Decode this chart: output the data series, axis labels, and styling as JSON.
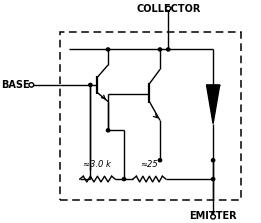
{
  "collector_label": "COLLECTOR",
  "base_label": "BASE",
  "emitter_label": "EMITTER",
  "r1_label": "≈3.0 k",
  "r2_label": "≈25",
  "bg_color": "#ffffff",
  "line_color": "#000000",
  "font_size": 7
}
